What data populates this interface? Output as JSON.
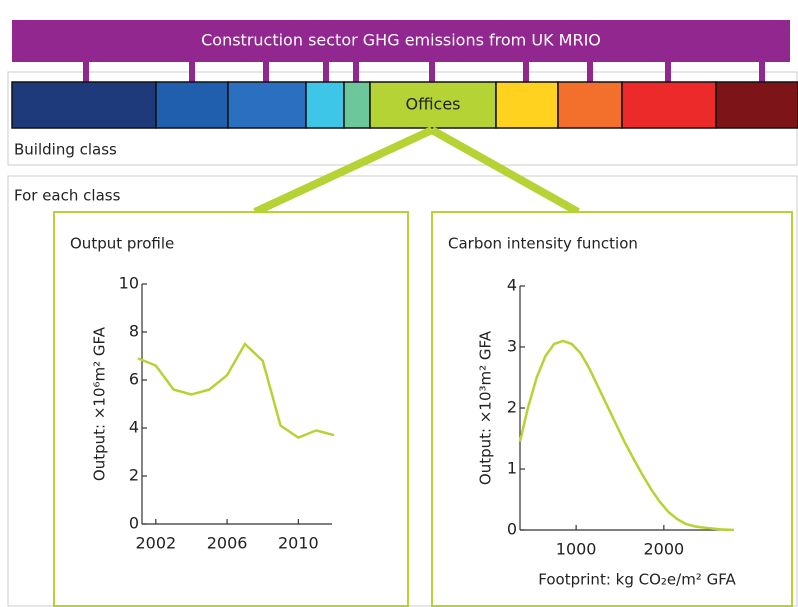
{
  "header": {
    "title": "Construction sector GHG emissions from UK MRIO"
  },
  "building_class": {
    "highlighted": "Offices",
    "caption": "Building class"
  },
  "for_each_class": "For each class",
  "chart_data": [
    {
      "type": "line",
      "title": "Output profile",
      "ylabel": "Output: ×10⁶m² GFA",
      "color": "#b5d335",
      "x": [
        2001,
        2002,
        2003,
        2004,
        2005,
        2006,
        2007,
        2008,
        2009,
        2010,
        2011,
        2012
      ],
      "values": [
        6.9,
        6.6,
        5.6,
        5.4,
        5.6,
        6.2,
        7.5,
        6.8,
        4.1,
        3.6,
        3.9,
        3.7
      ],
      "xlim": [
        2001,
        2012
      ],
      "xticks": [
        2002,
        2006,
        2010
      ],
      "ylim": [
        0,
        10
      ],
      "yticks": [
        0,
        2,
        4,
        6,
        8,
        10
      ]
    },
    {
      "type": "line",
      "title": "Carbon intensity function",
      "ylabel": "Output: ×10³m² GFA",
      "xlabel": "Footprint: kg CO₂e/m² GFA",
      "color": "#b5d335",
      "x": [
        360,
        450,
        550,
        650,
        750,
        850,
        950,
        1050,
        1150,
        1250,
        1350,
        1450,
        1550,
        1650,
        1750,
        1850,
        1950,
        2050,
        2150,
        2250,
        2350,
        2500,
        2650,
        2800
      ],
      "values": [
        1.45,
        2.0,
        2.5,
        2.85,
        3.05,
        3.1,
        3.05,
        2.9,
        2.65,
        2.35,
        2.05,
        1.75,
        1.45,
        1.18,
        0.92,
        0.68,
        0.47,
        0.3,
        0.18,
        0.1,
        0.06,
        0.03,
        0.01,
        0
      ],
      "xlim": [
        360,
        2800
      ],
      "xticks": [
        1000,
        2000
      ],
      "ylim": [
        0,
        4
      ],
      "yticks": [
        0,
        1,
        2,
        3,
        4
      ]
    }
  ]
}
